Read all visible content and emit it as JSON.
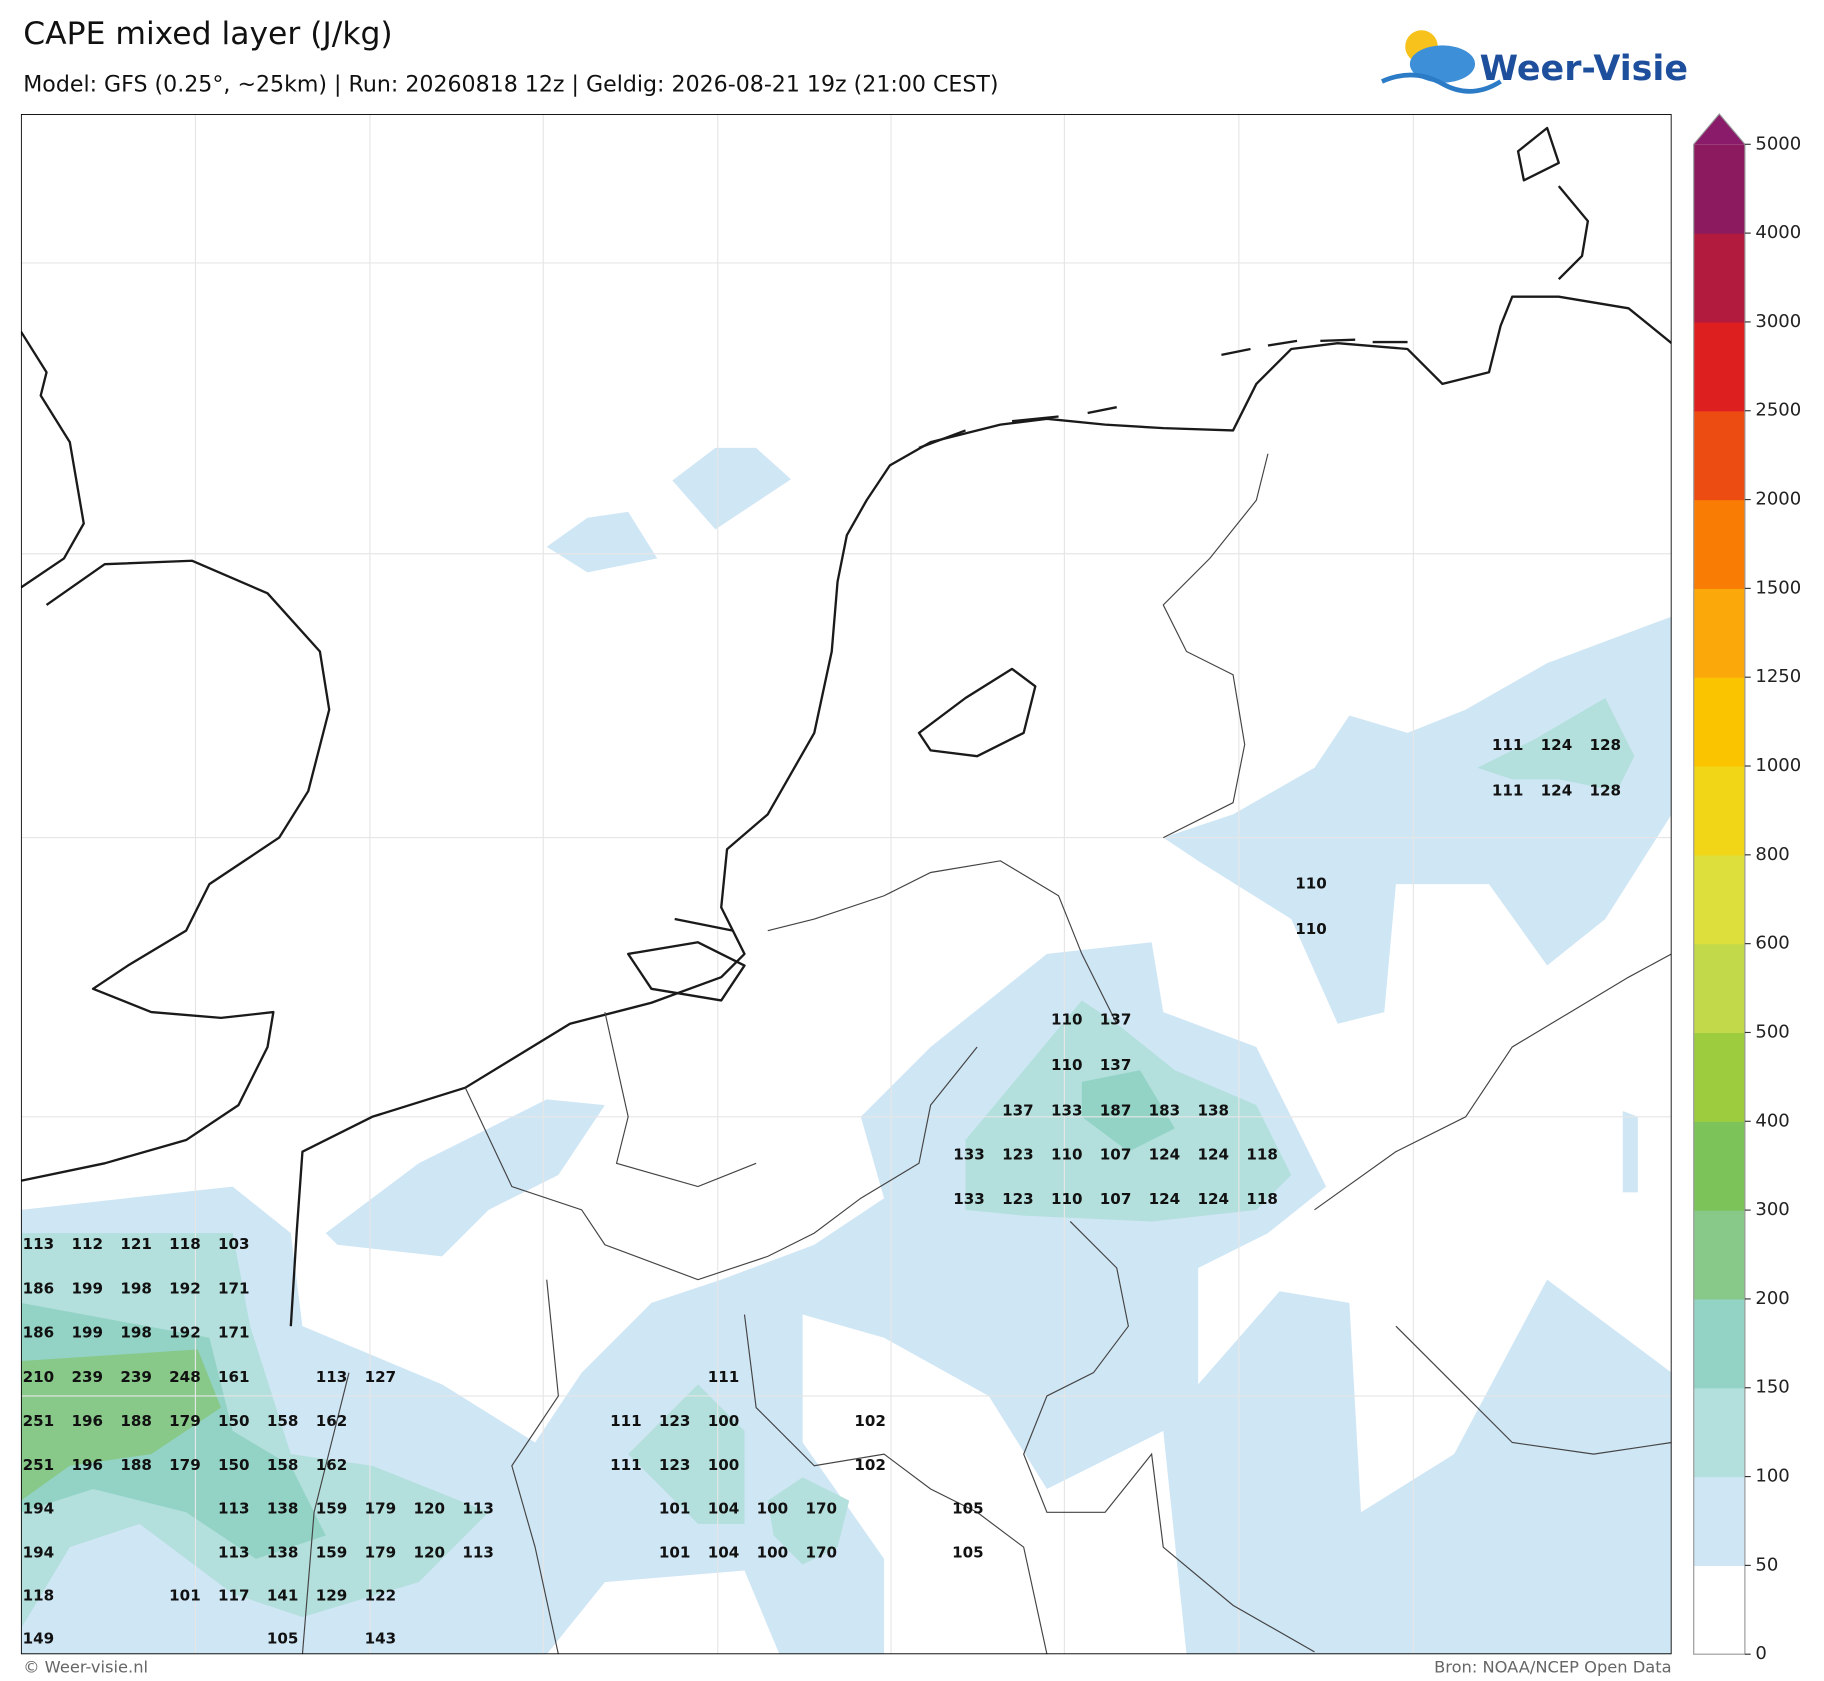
{
  "header": {
    "title": "CAPE mixed layer (J/kg)",
    "subtitle": "Model: GFS (0.25°, ~25km)  |  Run: 20260818 12z  |  Geldig: 2026-08-21 19z (21:00 CEST)",
    "logo": "Weer-Visie"
  },
  "footer": {
    "copyright": "© Weer-visie.nl",
    "source": "Bron: NOAA/NCEP Open Data"
  },
  "colorbar": {
    "levels": [
      0,
      50,
      100,
      150,
      200,
      300,
      400,
      500,
      600,
      800,
      1000,
      1250,
      1500,
      2000,
      2500,
      3000,
      4000,
      5000
    ],
    "colors": [
      "#ffffff",
      "#cfe6f5",
      "#b3dfdc",
      "#93d3c6",
      "#88c98a",
      "#7cc35a",
      "#9dcd3f",
      "#c2d94a",
      "#dcdf3c",
      "#f1d618",
      "#fbc400",
      "#fba90a",
      "#f97c05",
      "#ec4b12",
      "#de1f1f",
      "#b21b3d",
      "#8b1a5e"
    ],
    "extend_color": "#8a1a6a"
  },
  "point_labels": [
    [
      113,
      112,
      121,
      118,
      103
    ],
    [
      186,
      199,
      198,
      192,
      171
    ],
    [
      186,
      199,
      198,
      192,
      171
    ],
    [
      210,
      239,
      239,
      248,
      161,
      113,
      127,
      111
    ],
    [
      251,
      196,
      188,
      179,
      150,
      158,
      162,
      111,
      123,
      100,
      102
    ],
    [
      251,
      196,
      188,
      179,
      150,
      158,
      162,
      111,
      123,
      100,
      102
    ],
    [
      194,
      113,
      138,
      159,
      179,
      120,
      113,
      101,
      104,
      100,
      170,
      105
    ],
    [
      194,
      113,
      138,
      159,
      179,
      120,
      113,
      101,
      104,
      100,
      170,
      105
    ],
    [
      118,
      101,
      117,
      141,
      129,
      122
    ],
    [
      149,
      105,
      143
    ],
    [
      110,
      137
    ],
    [
      110,
      137
    ],
    [
      137,
      133,
      187,
      183,
      138
    ],
    [
      133,
      123,
      110,
      107,
      124,
      124,
      118
    ],
    [
      133,
      123,
      110,
      107,
      124,
      124,
      118
    ],
    [
      110
    ],
    [
      110
    ],
    [
      111,
      124,
      128
    ],
    [
      111,
      124,
      128
    ]
  ]
}
